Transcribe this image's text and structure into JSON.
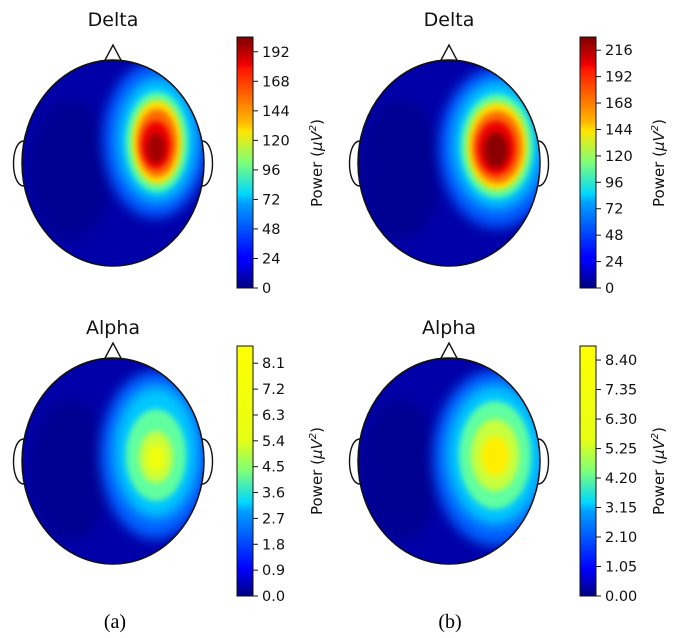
{
  "chart_data": [
    {
      "type": "heatmap",
      "title": "Delta",
      "colorbar_label": "Power (μV²)",
      "colorbar_label_parts": {
        "pre": "Power (",
        "mu": "μ",
        "v": "V",
        "sup": "2",
        "post": ")"
      },
      "colormap": "jet",
      "ticks": [
        "0",
        "24",
        "48",
        "72",
        "96",
        "120",
        "144",
        "168",
        "192"
      ],
      "tick_values": [
        0,
        24,
        48,
        72,
        96,
        120,
        144,
        168,
        192
      ],
      "vmax": 204,
      "hotspot": {
        "location": "right-frontal",
        "peak": 204
      }
    },
    {
      "type": "heatmap",
      "title": "Delta",
      "colorbar_label": "Power (μV²)",
      "colorbar_label_parts": {
        "pre": "Power (",
        "mu": "μ",
        "v": "V",
        "sup": "2",
        "post": ")"
      },
      "colormap": "jet",
      "ticks": [
        "0",
        "24",
        "48",
        "72",
        "96",
        "120",
        "144",
        "168",
        "192",
        "216"
      ],
      "tick_values": [
        0,
        24,
        48,
        72,
        96,
        120,
        144,
        168,
        192,
        216
      ],
      "vmax": 228,
      "hotspot": {
        "location": "right-central",
        "peak": 228
      }
    },
    {
      "type": "heatmap",
      "title": "Alpha",
      "colorbar_label": "Power (μV²)",
      "colorbar_label_parts": {
        "pre": "Power (",
        "mu": "μ",
        "v": "V",
        "sup": "2",
        "post": ")"
      },
      "colormap": "jet",
      "ticks": [
        "0.0",
        "0.9",
        "1.8",
        "2.7",
        "3.6",
        "4.5",
        "5.4",
        "6.3",
        "7.2",
        "8.1"
      ],
      "tick_values": [
        0,
        0.9,
        1.8,
        2.7,
        3.6,
        4.5,
        5.4,
        6.3,
        7.2,
        8.1
      ],
      "vmax": 8.7,
      "hotspot": {
        "location": "right-central",
        "peak": 5.4
      }
    },
    {
      "type": "heatmap",
      "title": "Alpha",
      "colorbar_label": "Power (μV²)",
      "colorbar_label_parts": {
        "pre": "Power (",
        "mu": "μ",
        "v": "V",
        "sup": "2",
        "post": ")"
      },
      "colormap": "jet",
      "ticks": [
        "0.00",
        "1.05",
        "2.10",
        "3.15",
        "4.20",
        "5.25",
        "6.30",
        "7.35",
        "8.40"
      ],
      "tick_values": [
        0,
        1.05,
        2.1,
        3.15,
        4.2,
        5.25,
        6.3,
        7.35,
        8.4
      ],
      "vmax": 8.9,
      "hotspot": {
        "location": "right-central",
        "peak": 6.0
      }
    }
  ],
  "captions": {
    "left": "(a)",
    "right": "(b)"
  }
}
